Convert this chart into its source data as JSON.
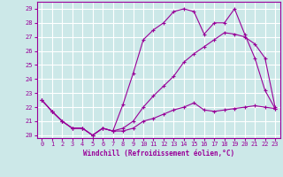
{
  "xlabel": "Windchill (Refroidissement éolien,°C)",
  "xlim": [
    -0.5,
    23.5
  ],
  "ylim": [
    19.8,
    29.5
  ],
  "yticks": [
    20,
    21,
    22,
    23,
    24,
    25,
    26,
    27,
    28,
    29
  ],
  "xticks": [
    0,
    1,
    2,
    3,
    4,
    5,
    6,
    7,
    8,
    9,
    10,
    11,
    12,
    13,
    14,
    15,
    16,
    17,
    18,
    19,
    20,
    21,
    22,
    23
  ],
  "bg_color": "#cce8e8",
  "grid_color": "#ffffff",
  "line_color": "#990099",
  "series1_x": [
    0,
    1,
    2,
    3,
    4,
    5,
    6,
    7,
    8,
    9,
    10,
    11,
    12,
    13,
    14,
    15,
    16,
    17,
    18,
    19,
    20,
    21,
    22,
    23
  ],
  "series1_y": [
    22.5,
    21.7,
    21.0,
    20.5,
    20.5,
    20.0,
    20.5,
    20.3,
    20.3,
    20.5,
    21.0,
    21.2,
    21.5,
    21.8,
    22.0,
    22.3,
    21.8,
    21.7,
    21.8,
    21.9,
    22.0,
    22.1,
    22.0,
    21.9
  ],
  "series2_x": [
    0,
    1,
    2,
    3,
    4,
    5,
    6,
    7,
    8,
    9,
    10,
    11,
    12,
    13,
    14,
    15,
    16,
    17,
    18,
    19,
    20,
    21,
    22,
    23
  ],
  "series2_y": [
    22.5,
    21.7,
    21.0,
    20.5,
    20.5,
    20.0,
    20.5,
    20.3,
    22.2,
    24.4,
    26.8,
    27.5,
    28.0,
    28.8,
    29.0,
    28.8,
    27.2,
    28.0,
    28.0,
    29.0,
    27.2,
    25.5,
    23.2,
    21.9
  ],
  "series3_x": [
    0,
    1,
    2,
    3,
    4,
    5,
    6,
    7,
    8,
    9,
    10,
    11,
    12,
    13,
    14,
    15,
    16,
    17,
    18,
    19,
    20,
    21,
    22,
    23
  ],
  "series3_y": [
    22.5,
    21.7,
    21.0,
    20.5,
    20.5,
    20.0,
    20.5,
    20.3,
    20.5,
    21.0,
    22.0,
    22.8,
    23.5,
    24.2,
    25.2,
    25.8,
    26.3,
    26.8,
    27.3,
    27.2,
    27.0,
    26.5,
    25.5,
    22.0
  ]
}
